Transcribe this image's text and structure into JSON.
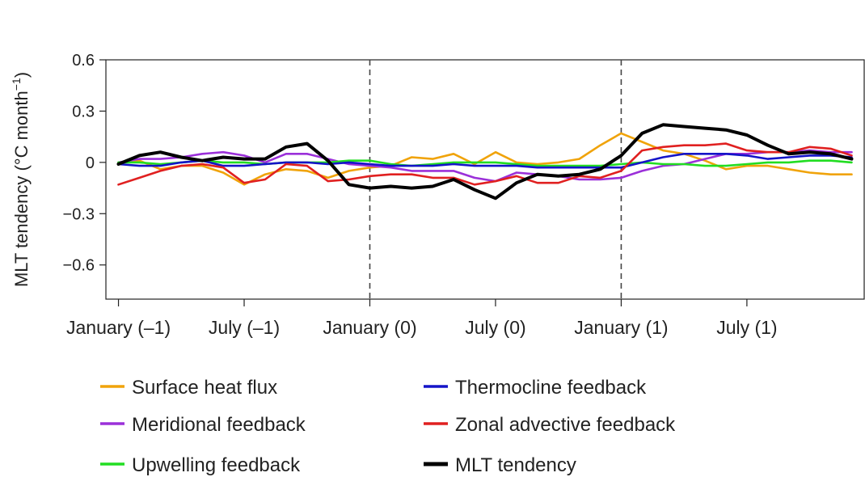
{
  "chart_data": {
    "type": "line",
    "title": "",
    "xlabel": "",
    "ylabel": "MLT tendency (°C month",
    "ylabel_exponent": "−1",
    "ylabel_close": ")",
    "ylim": [
      -0.8,
      0.6
    ],
    "yticks": [
      {
        "value": 0.6,
        "label": "0.6"
      },
      {
        "value": 0.3,
        "label": "0.3"
      },
      {
        "value": 0,
        "label": "0"
      },
      {
        "value": -0.3,
        "label": "−0.3"
      },
      {
        "value": -0.6,
        "label": "−0.6"
      }
    ],
    "xlim": [
      -0.6,
      35.6
    ],
    "xticks": [
      {
        "value": 0,
        "label": "January (–1)"
      },
      {
        "value": 6,
        "label": "July (–1)"
      },
      {
        "value": 12,
        "label": "January (0)"
      },
      {
        "value": 18,
        "label": "July (0)"
      },
      {
        "value": 24,
        "label": "January (1)"
      },
      {
        "value": 30,
        "label": "July (1)"
      }
    ],
    "vlines": [
      12,
      24
    ],
    "x": [
      0,
      1,
      2,
      3,
      4,
      5,
      6,
      7,
      8,
      9,
      10,
      11,
      12,
      13,
      14,
      15,
      16,
      17,
      18,
      19,
      20,
      21,
      22,
      23,
      24,
      25,
      26,
      27,
      28,
      29,
      30,
      31,
      32,
      33,
      34,
      35
    ],
    "series": [
      {
        "name": "Surface heat flux",
        "color": "#f0a30a",
        "values": [
          0.0,
          0.01,
          -0.04,
          -0.02,
          -0.02,
          -0.06,
          -0.13,
          -0.07,
          -0.04,
          -0.05,
          -0.09,
          -0.05,
          -0.03,
          -0.02,
          0.03,
          0.02,
          0.05,
          -0.01,
          0.06,
          0.0,
          -0.01,
          0.0,
          0.02,
          0.1,
          0.17,
          0.12,
          0.07,
          0.05,
          0.01,
          -0.04,
          -0.02,
          -0.02,
          -0.04,
          -0.06,
          -0.07,
          -0.07
        ]
      },
      {
        "name": "Meridional feedback",
        "color": "#9b30d9",
        "values": [
          0.0,
          0.02,
          0.02,
          0.03,
          0.05,
          0.06,
          0.04,
          0.0,
          0.05,
          0.05,
          0.02,
          -0.01,
          -0.02,
          -0.03,
          -0.05,
          -0.05,
          -0.05,
          -0.09,
          -0.11,
          -0.06,
          -0.07,
          -0.08,
          -0.1,
          -0.1,
          -0.09,
          -0.05,
          -0.02,
          -0.01,
          0.02,
          0.05,
          0.05,
          0.06,
          0.06,
          0.07,
          0.06,
          0.06
        ]
      },
      {
        "name": "Upwelling feedback",
        "color": "#22dd22",
        "values": [
          0.0,
          0.0,
          -0.01,
          0.0,
          0.01,
          0.0,
          0.0,
          -0.01,
          0.0,
          0.0,
          0.0,
          0.01,
          0.01,
          -0.01,
          -0.02,
          -0.01,
          0.0,
          0.0,
          0.0,
          -0.01,
          -0.02,
          -0.02,
          -0.02,
          -0.02,
          -0.01,
          0.0,
          -0.01,
          -0.01,
          -0.02,
          -0.02,
          -0.01,
          0.0,
          0.0,
          0.01,
          0.01,
          0.0
        ]
      },
      {
        "name": "Thermocline feedback",
        "color": "#1414c8",
        "values": [
          -0.01,
          -0.02,
          -0.02,
          0.0,
          0.01,
          -0.02,
          -0.02,
          -0.01,
          0.0,
          0.0,
          -0.01,
          0.0,
          -0.01,
          -0.02,
          -0.02,
          -0.02,
          -0.01,
          -0.02,
          -0.02,
          -0.02,
          -0.03,
          -0.03,
          -0.03,
          -0.03,
          -0.03,
          0.0,
          0.03,
          0.05,
          0.05,
          0.05,
          0.04,
          0.02,
          0.03,
          0.04,
          0.04,
          0.03
        ]
      },
      {
        "name": "Zonal advective feedback",
        "color": "#e02020",
        "values": [
          -0.13,
          -0.09,
          -0.05,
          -0.02,
          -0.01,
          -0.03,
          -0.12,
          -0.1,
          -0.01,
          -0.02,
          -0.11,
          -0.1,
          -0.08,
          -0.07,
          -0.07,
          -0.09,
          -0.09,
          -0.13,
          -0.11,
          -0.08,
          -0.12,
          -0.12,
          -0.08,
          -0.09,
          -0.05,
          0.07,
          0.09,
          0.1,
          0.1,
          0.11,
          0.07,
          0.06,
          0.06,
          0.09,
          0.08,
          0.04
        ]
      },
      {
        "name": "MLT tendency",
        "color": "#000000",
        "values": [
          -0.01,
          0.04,
          0.06,
          0.03,
          0.01,
          0.03,
          0.02,
          0.02,
          0.09,
          0.11,
          0.01,
          -0.13,
          -0.15,
          -0.14,
          -0.15,
          -0.14,
          -0.1,
          -0.16,
          -0.21,
          -0.12,
          -0.07,
          -0.08,
          -0.07,
          -0.04,
          0.04,
          0.17,
          0.22,
          0.21,
          0.2,
          0.19,
          0.16,
          0.1,
          0.05,
          0.06,
          0.05,
          0.02
        ]
      }
    ],
    "legend": [
      {
        "series": 0,
        "column": 0,
        "row": 0
      },
      {
        "series": 3,
        "column": 1,
        "row": 0
      },
      {
        "series": 1,
        "column": 0,
        "row": 1
      },
      {
        "series": 4,
        "column": 1,
        "row": 1
      },
      {
        "series": 2,
        "column": 0,
        "row": 2
      },
      {
        "series": 5,
        "column": 1,
        "row": 2
      }
    ],
    "legend_position": "bottom",
    "grid": false
  }
}
